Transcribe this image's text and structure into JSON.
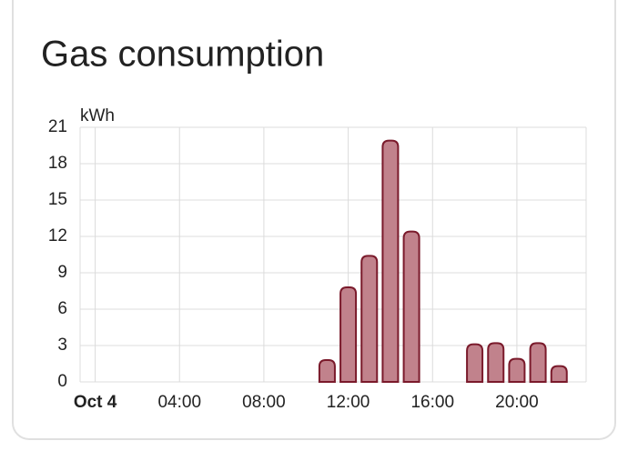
{
  "chart_data": {
    "type": "bar",
    "title": "Gas consumption",
    "y_label": "kWh",
    "categories": [
      "Oct 4",
      null,
      null,
      null,
      "04:00",
      null,
      null,
      null,
      "08:00",
      null,
      null,
      null,
      "12:00",
      null,
      null,
      null,
      "16:00",
      null,
      null,
      null,
      "20:00",
      null,
      null,
      null
    ],
    "values": [
      null,
      null,
      null,
      null,
      null,
      null,
      null,
      null,
      null,
      null,
      null,
      1.8,
      7.8,
      10.4,
      19.9,
      12.4,
      null,
      null,
      3.1,
      3.2,
      1.9,
      3.2,
      1.3,
      null
    ],
    "color": "#c1828c",
    "edge_color": "#7a1a2b",
    "ylim": [
      0,
      21
    ],
    "yticks": [
      0,
      3,
      6,
      9,
      12,
      15,
      18,
      21
    ],
    "grid": true
  }
}
